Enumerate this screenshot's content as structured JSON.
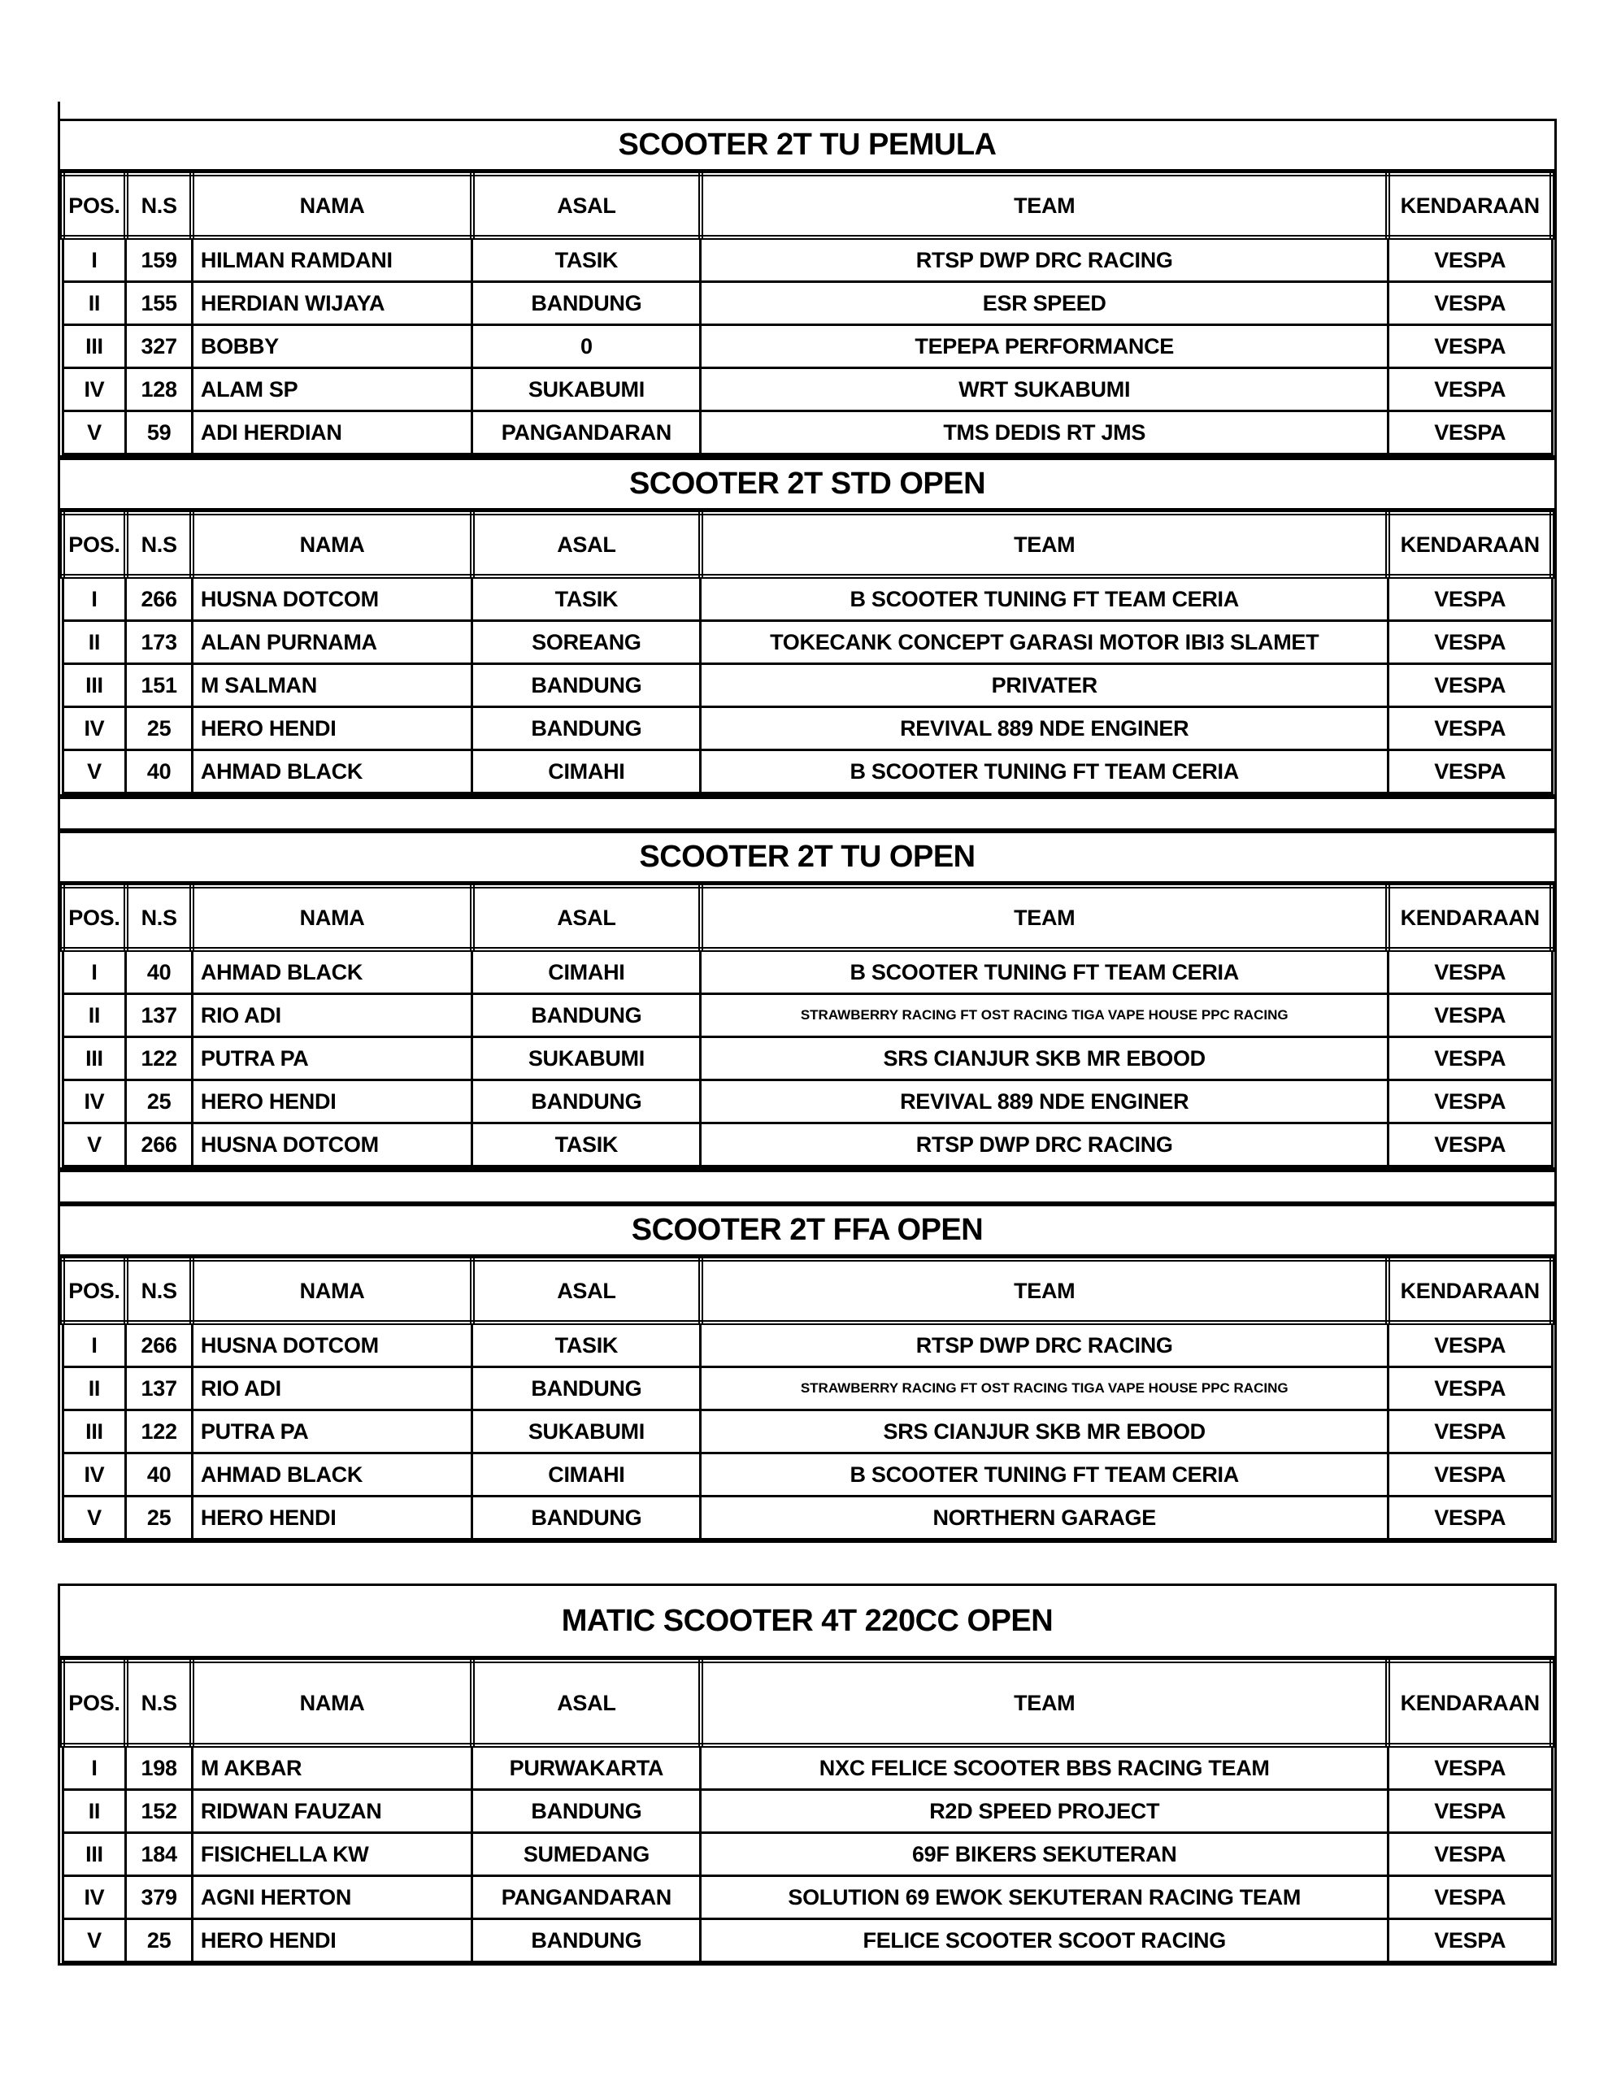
{
  "columns": [
    "POS.",
    "N.S",
    "NAMA",
    "ASAL",
    "TEAM",
    "KENDARAAN"
  ],
  "sections": [
    {
      "title": "SCOOTER 2T TU PEMULA",
      "spacer_before": "none",
      "tall": false,
      "rows": [
        {
          "pos": "I",
          "ns": "159",
          "nama": "HILMAN RAMDANI",
          "asal": "TASIK",
          "team": "RTSP DWP DRC RACING",
          "kendaraan": "VESPA"
        },
        {
          "pos": "II",
          "ns": "155",
          "nama": "HERDIAN WIJAYA",
          "asal": "BANDUNG",
          "team": "ESR SPEED",
          "kendaraan": "VESPA"
        },
        {
          "pos": "III",
          "ns": "327",
          "nama": "BOBBY",
          "asal": "0",
          "team": "TEPEPA PERFORMANCE",
          "kendaraan": "VESPA"
        },
        {
          "pos": "IV",
          "ns": "128",
          "nama": "ALAM SP",
          "asal": "SUKABUMI",
          "team": "WRT SUKABUMI",
          "kendaraan": "VESPA"
        },
        {
          "pos": "V",
          "ns": "59",
          "nama": "ADI HERDIAN",
          "asal": "PANGANDARAN",
          "team": "TMS DEDIS RT JMS",
          "kendaraan": "VESPA"
        }
      ]
    },
    {
      "title": "SCOOTER 2T STD OPEN",
      "spacer_before": "none",
      "tall": false,
      "rows": [
        {
          "pos": "I",
          "ns": "266",
          "nama": "HUSNA DOTCOM",
          "asal": "TASIK",
          "team": "B SCOOTER TUNING FT TEAM CERIA",
          "kendaraan": "VESPA"
        },
        {
          "pos": "II",
          "ns": "173",
          "nama": "ALAN PURNAMA",
          "asal": "SOREANG",
          "team": "TOKECANK CONCEPT GARASI MOTOR IBI3 SLAMET",
          "kendaraan": "VESPA"
        },
        {
          "pos": "III",
          "ns": "151",
          "nama": "M SALMAN",
          "asal": "BANDUNG",
          "team": "PRIVATER",
          "kendaraan": "VESPA"
        },
        {
          "pos": "IV",
          "ns": "25",
          "nama": "HERO HENDI",
          "asal": "BANDUNG",
          "team": "REVIVAL 889 NDE ENGINER",
          "kendaraan": "VESPA"
        },
        {
          "pos": "V",
          "ns": "40",
          "nama": "AHMAD BLACK",
          "asal": "CIMAHI",
          "team": "B SCOOTER TUNING FT TEAM CERIA",
          "kendaraan": "VESPA"
        }
      ]
    },
    {
      "title": "SCOOTER 2T TU OPEN",
      "spacer_before": "boxed",
      "tall": false,
      "rows": [
        {
          "pos": "I",
          "ns": "40",
          "nama": "AHMAD BLACK",
          "asal": "CIMAHI",
          "team": "B SCOOTER TUNING FT TEAM CERIA",
          "kendaraan": "VESPA"
        },
        {
          "pos": "II",
          "ns": "137",
          "nama": "RIO ADI",
          "asal": "BANDUNG",
          "team": "STRAWBERRY RACING FT OST RACING TIGA VAPE HOUSE PPC RACING",
          "kendaraan": "VESPA"
        },
        {
          "pos": "III",
          "ns": "122",
          "nama": "PUTRA PA",
          "asal": "SUKABUMI",
          "team": "SRS CIANJUR SKB MR EBOOD",
          "kendaraan": "VESPA"
        },
        {
          "pos": "IV",
          "ns": "25",
          "nama": "HERO HENDI",
          "asal": "BANDUNG",
          "team": "REVIVAL 889 NDE ENGINER",
          "kendaraan": "VESPA"
        },
        {
          "pos": "V",
          "ns": "266",
          "nama": "HUSNA DOTCOM",
          "asal": "TASIK",
          "team": "RTSP DWP DRC RACING",
          "kendaraan": "VESPA"
        }
      ]
    },
    {
      "title": "SCOOTER 2T FFA OPEN",
      "spacer_before": "boxed",
      "tall": false,
      "rows": [
        {
          "pos": "I",
          "ns": "266",
          "nama": "HUSNA DOTCOM",
          "asal": "TASIK",
          "team": "RTSP DWP DRC RACING",
          "kendaraan": "VESPA"
        },
        {
          "pos": "II",
          "ns": "137",
          "nama": "RIO ADI",
          "asal": "BANDUNG",
          "team": "STRAWBERRY RACING FT OST RACING TIGA VAPE HOUSE PPC RACING",
          "kendaraan": "VESPA"
        },
        {
          "pos": "III",
          "ns": "122",
          "nama": "PUTRA PA",
          "asal": "SUKABUMI",
          "team": "SRS CIANJUR SKB MR EBOOD",
          "kendaraan": "VESPA"
        },
        {
          "pos": "IV",
          "ns": "40",
          "nama": "AHMAD BLACK",
          "asal": "CIMAHI",
          "team": "B SCOOTER TUNING FT TEAM CERIA",
          "kendaraan": "VESPA"
        },
        {
          "pos": "V",
          "ns": "25",
          "nama": "HERO HENDI",
          "asal": "BANDUNG",
          "team": "NORTHERN GARAGE",
          "kendaraan": "VESPA"
        }
      ]
    },
    {
      "title": "MATIC SCOOTER 4T 220CC OPEN",
      "spacer_before": "plain",
      "tall": true,
      "rows": [
        {
          "pos": "I",
          "ns": "198",
          "nama": "M AKBAR",
          "asal": "PURWAKARTA",
          "team": "NXC FELICE SCOOTER BBS RACING TEAM",
          "kendaraan": "VESPA"
        },
        {
          "pos": "II",
          "ns": "152",
          "nama": "RIDWAN FAUZAN",
          "asal": "BANDUNG",
          "team": "R2D SPEED PROJECT",
          "kendaraan": "VESPA"
        },
        {
          "pos": "III",
          "ns": "184",
          "nama": "FISICHELLA KW",
          "asal": "SUMEDANG",
          "team": "69F BIKERS SEKUTERAN",
          "kendaraan": "VESPA"
        },
        {
          "pos": "IV",
          "ns": "379",
          "nama": "AGNI HERTON",
          "asal": "PANGANDARAN",
          "team": "SOLUTION 69 EWOK SEKUTERAN RACING TEAM",
          "kendaraan": "VESPA"
        },
        {
          "pos": "V",
          "ns": "25",
          "nama": "HERO HENDI",
          "asal": "BANDUNG",
          "team": "FELICE SCOOTER SCOOT RACING",
          "kendaraan": "VESPA"
        }
      ]
    }
  ]
}
